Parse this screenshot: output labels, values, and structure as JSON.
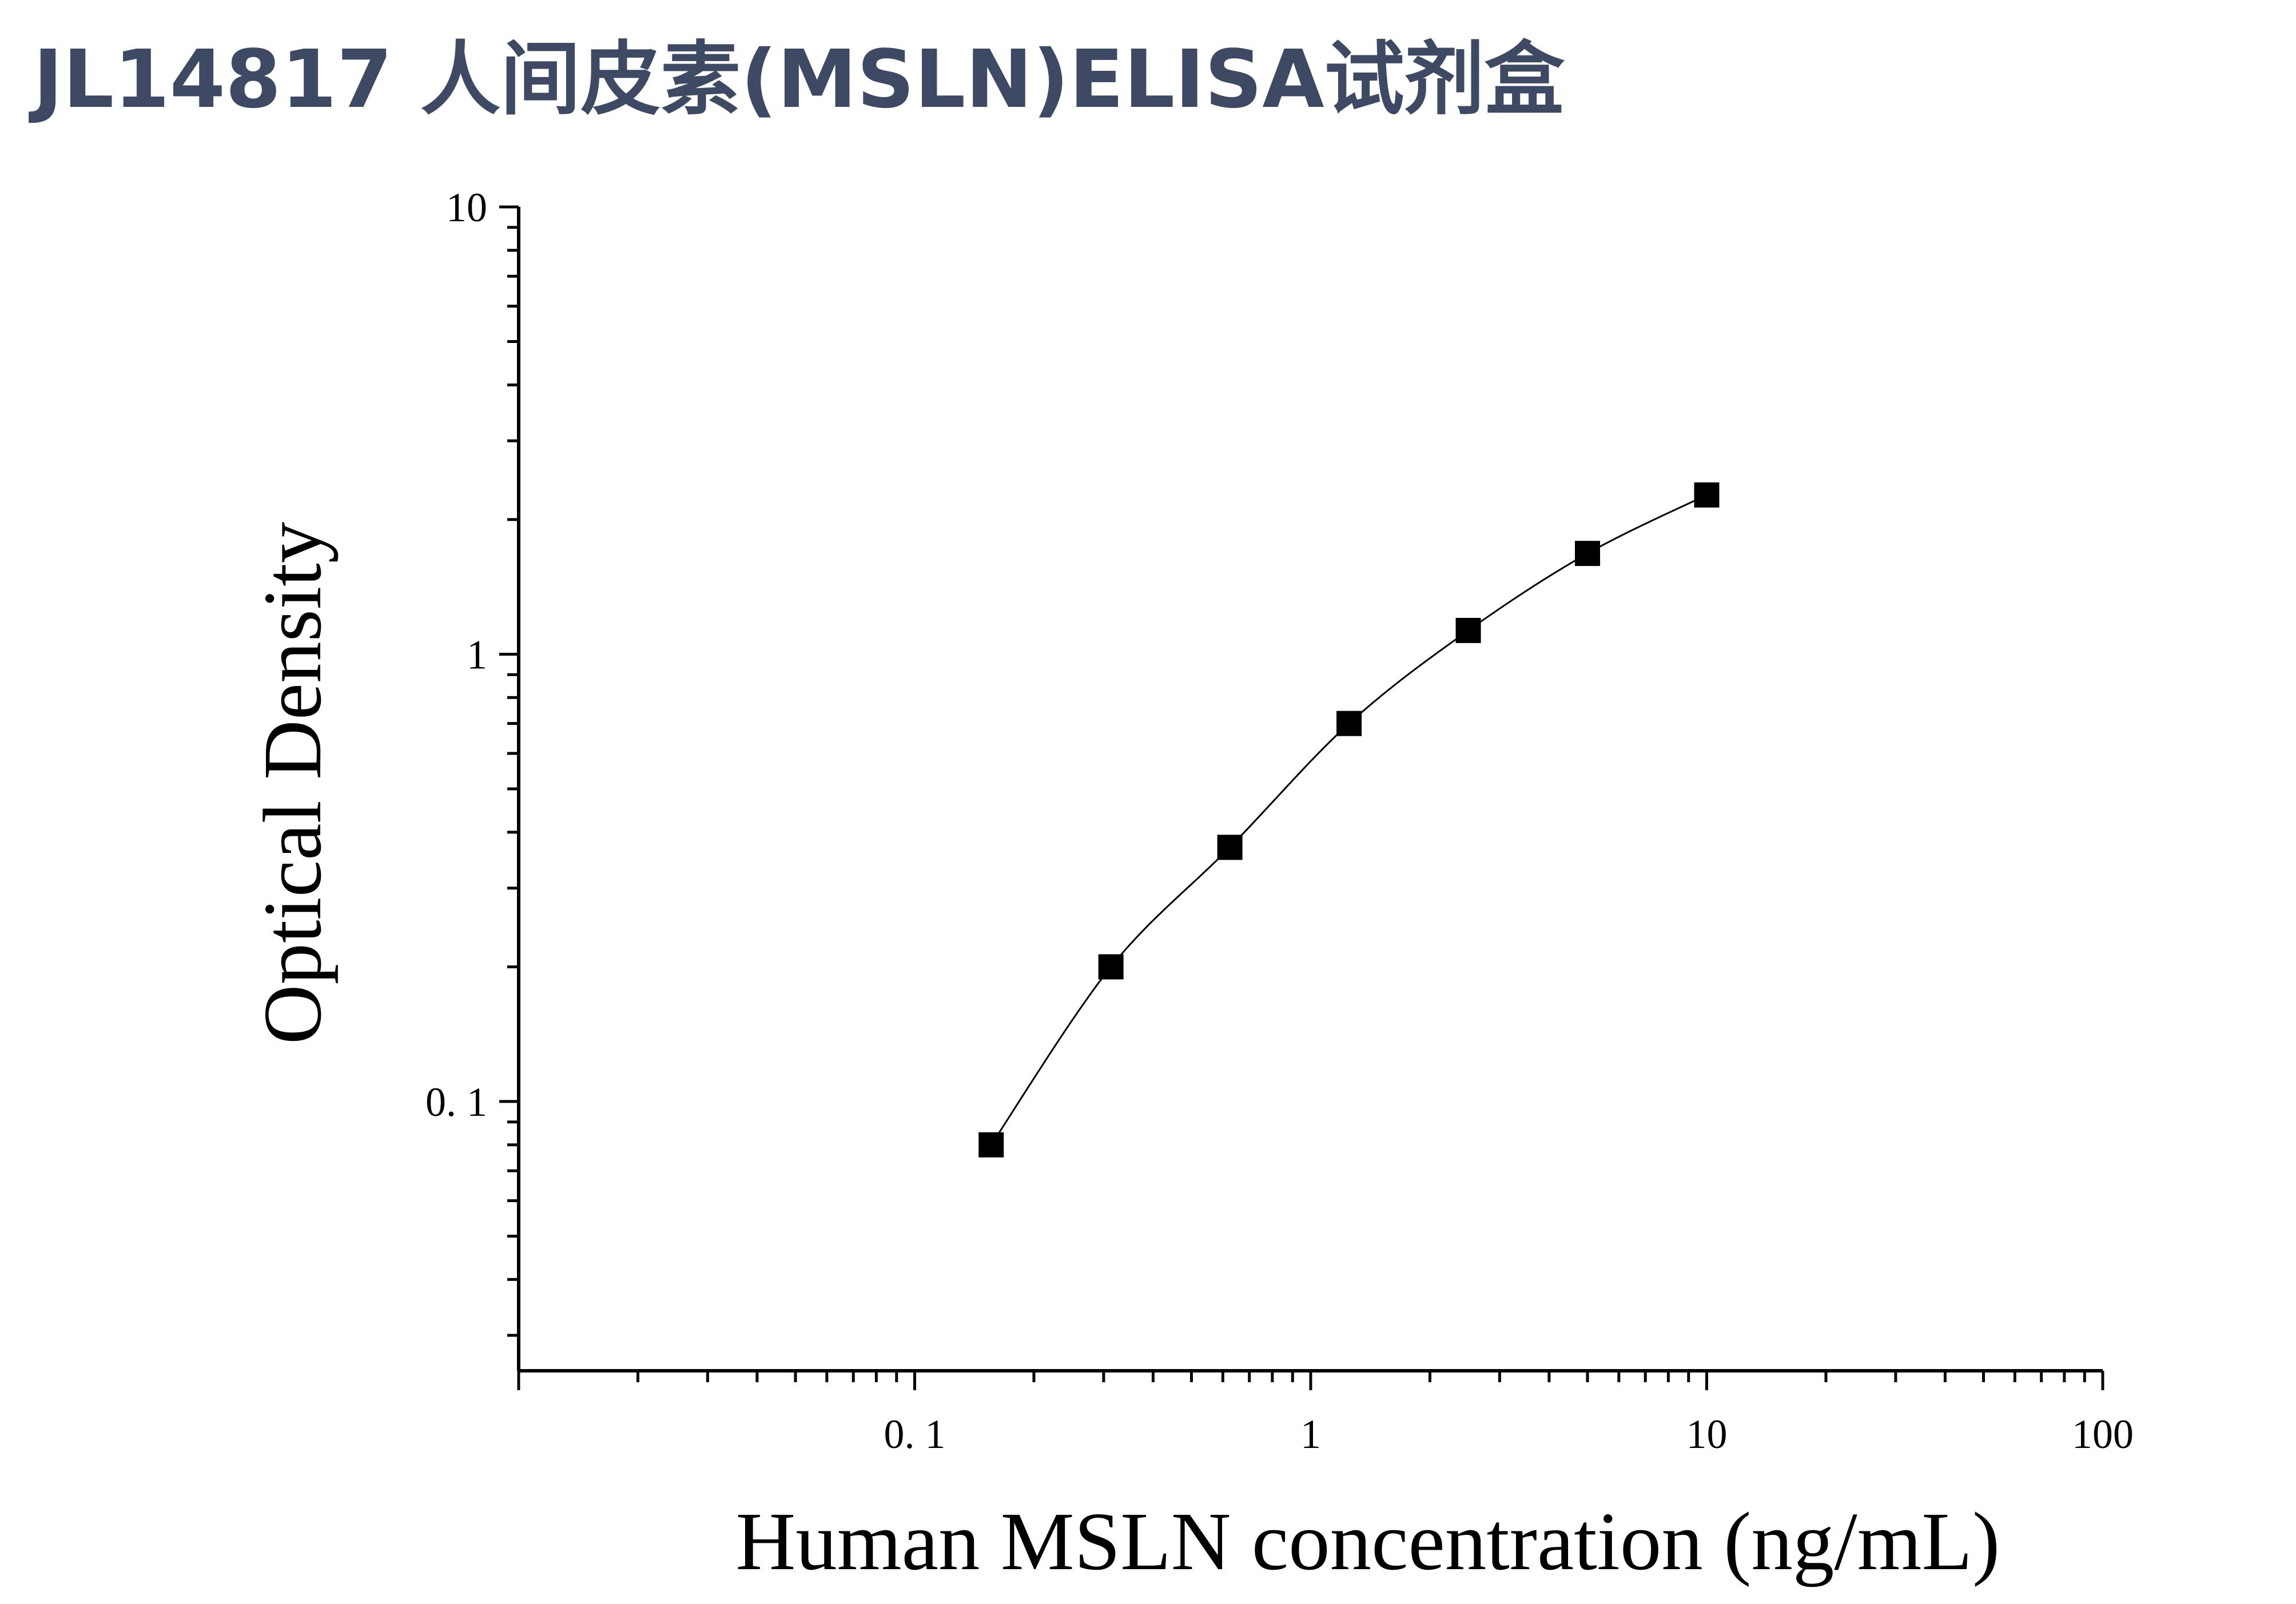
{
  "title": "JL14817 人间皮素(MSLN)ELISA试剂盒",
  "chart_data": {
    "type": "scatter",
    "title": "JL14817 人间皮素(MSLN)ELISA试剂盒",
    "xlabel": "Human MSLN concentration (ng/mL)",
    "ylabel": "Optical Density",
    "x_scale": "log",
    "y_scale": "log",
    "xlim": [
      0.01,
      100
    ],
    "ylim": [
      0.025,
      10
    ],
    "x_ticks": [
      {
        "value": 0.1,
        "label": "0. 1"
      },
      {
        "value": 1,
        "label": "1"
      },
      {
        "value": 10,
        "label": "10"
      },
      {
        "value": 100,
        "label": "100"
      }
    ],
    "y_ticks": [
      {
        "value": 0.1,
        "label": "0. 1"
      },
      {
        "value": 1,
        "label": "1"
      },
      {
        "value": 10,
        "label": "10"
      }
    ],
    "grid": false,
    "legend": "none",
    "marker": "square",
    "fit_line": "smooth curve through points",
    "series": [
      {
        "x": [
          0.156,
          0.313,
          0.625,
          1.25,
          2.5,
          5,
          10
        ],
        "y": [
          0.08,
          0.2,
          0.37,
          0.7,
          1.13,
          1.68,
          2.27
        ]
      }
    ],
    "colors": {
      "title": "#3e4a63",
      "axis": "#000000",
      "marker": "#000000",
      "curve": "#000000"
    }
  }
}
